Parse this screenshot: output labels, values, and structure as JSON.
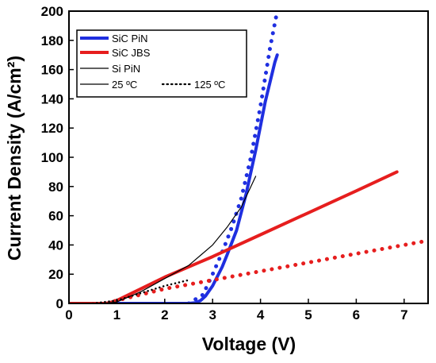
{
  "chart_data": {
    "type": "line",
    "xlabel": "Voltage (V)",
    "ylabel": "Current Density (A/cm²)",
    "xlim": [
      0,
      7.5
    ],
    "ylim": [
      0,
      200
    ],
    "xticks": [
      0,
      1,
      2,
      3,
      4,
      5,
      6,
      7
    ],
    "yticks": [
      0,
      20,
      40,
      60,
      80,
      100,
      120,
      140,
      160,
      180,
      200
    ],
    "legend": {
      "placement": "top-left",
      "entries": [
        "SiC PiN",
        "SiC JBS",
        "Si PiN",
        "25 ºC",
        "125 ºC"
      ]
    },
    "colors": {
      "sic_pin": "#1f2fe0",
      "sic_jbs": "#e61e1e",
      "si_pin": "#000000"
    },
    "series": [
      {
        "name": "SiC PiN",
        "temperature": "25 ºC",
        "style": "solid",
        "x": [
          0,
          2.5,
          2.65,
          2.75,
          2.85,
          3.0,
          3.2,
          3.3,
          3.5,
          3.7,
          3.9,
          4.1,
          4.3,
          4.35
        ],
        "y": [
          0,
          0,
          0.5,
          2,
          5,
          12,
          25,
          33,
          50,
          75,
          105,
          138,
          165,
          170
        ]
      },
      {
        "name": "SiC PiN",
        "temperature": "125 ºC",
        "style": "dotted",
        "x": [
          2.5,
          2.8,
          3.0,
          3.2,
          3.4,
          3.6,
          3.8,
          4.0,
          4.2,
          4.35
        ],
        "y": [
          0,
          6,
          20,
          35,
          52,
          72,
          100,
          135,
          175,
          200
        ]
      },
      {
        "name": "SiC JBS",
        "temperature": "25 ºC",
        "style": "solid",
        "x": [
          0,
          0.8,
          1.0,
          2.0,
          3.0,
          4.0,
          5.0,
          6.0,
          6.85
        ],
        "y": [
          0,
          0,
          2,
          18,
          32,
          47,
          62,
          77,
          90
        ]
      },
      {
        "name": "SiC JBS",
        "temperature": "125 ºC",
        "style": "dotted",
        "x": [
          0.8,
          1.0,
          2.0,
          3.0,
          4.0,
          5.0,
          6.0,
          7.0,
          7.5
        ],
        "y": [
          0,
          2,
          10,
          16,
          22,
          28,
          34,
          40,
          43
        ]
      },
      {
        "name": "Si PiN",
        "temperature": "25 ºC",
        "style": "solid",
        "x": [
          0,
          0.7,
          1.0,
          1.5,
          2.0,
          2.5,
          3.0,
          3.3,
          3.6,
          3.9
        ],
        "y": [
          0,
          0,
          1,
          8,
          17,
          26,
          40,
          52,
          66,
          87
        ]
      },
      {
        "name": "Si PiN",
        "temperature": "125 ºC",
        "style": "dotted",
        "x": [
          0.5,
          1.0,
          1.5,
          2.0,
          2.5
        ],
        "y": [
          0,
          2,
          7,
          12,
          16
        ]
      }
    ]
  }
}
